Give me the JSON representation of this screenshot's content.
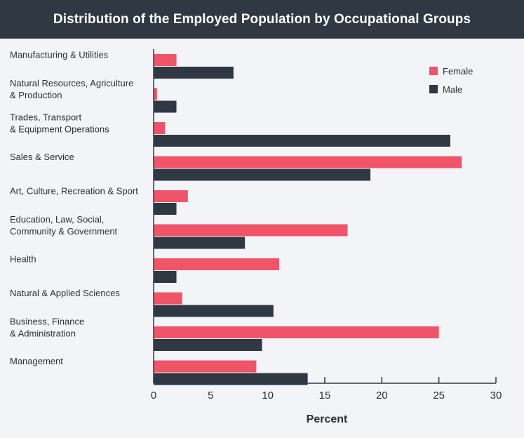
{
  "chart_data": {
    "type": "bar",
    "orientation": "horizontal",
    "title": "Distribution of the Employed Population by Occupational Groups",
    "xlabel": "Percent",
    "ylabel": "",
    "xlim": [
      0,
      30
    ],
    "xticks": [
      0,
      5,
      10,
      15,
      20,
      25,
      30
    ],
    "grid": false,
    "legend_position": "top-right",
    "categories": [
      [
        "Manufacturing & Utilities"
      ],
      [
        "Natural Resources, Agriculture",
        "& Production"
      ],
      [
        "Trades, Transport",
        "& Equipment Operations"
      ],
      [
        "Sales & Service"
      ],
      [
        "Art, Culture, Recreation & Sport"
      ],
      [
        "Education, Law, Social,",
        "Community & Government"
      ],
      [
        "Health"
      ],
      [
        "Natural & Applied Sciences"
      ],
      [
        "Business, Finance",
        "& Administration"
      ],
      [
        "Management"
      ]
    ],
    "series": [
      {
        "name": "Female",
        "color": "#ef5468",
        "values": [
          2,
          0.3,
          1,
          27,
          3,
          17,
          11,
          2.5,
          25,
          9
        ]
      },
      {
        "name": "Male",
        "color": "#2f3843",
        "values": [
          7,
          2,
          26,
          19,
          2,
          8,
          2,
          10.5,
          9.5,
          13.5
        ]
      }
    ]
  }
}
